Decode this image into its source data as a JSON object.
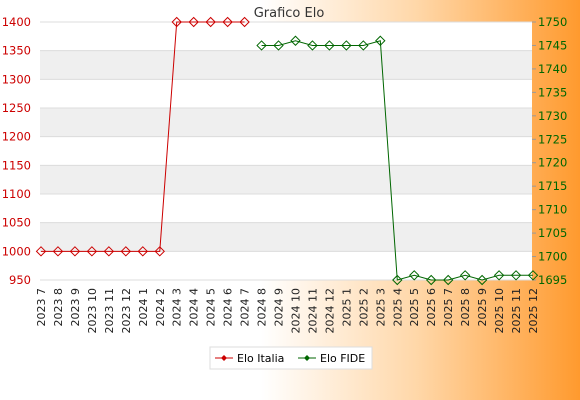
{
  "chart_data": {
    "type": "line",
    "title": "Grafico Elo",
    "categories": [
      "2023 7",
      "2023 8",
      "2023 9",
      "2023 10",
      "2023 11",
      "2023 12",
      "2024 1",
      "2024 2",
      "2024 3",
      "2024 4",
      "2024 5",
      "2024 6",
      "2024 7",
      "2024 8",
      "2024 9",
      "2024 10",
      "2024 11",
      "2024 12",
      "2025 1",
      "2025 2",
      "2025 3",
      "2025 4",
      "2025 5",
      "2025 6",
      "2025 7",
      "2025 8",
      "2025 9",
      "2025 10",
      "2025 11",
      "2025 12"
    ],
    "series": [
      {
        "name": "Elo Italia",
        "axis": "left",
        "color": "#cc0000",
        "values": [
          1000,
          1000,
          1000,
          1000,
          1000,
          1000,
          1000,
          1000,
          1400,
          1400,
          1400,
          1400,
          1400,
          null,
          null,
          null,
          null,
          null,
          null,
          null,
          null,
          null,
          null,
          null,
          null,
          null,
          null,
          null,
          null,
          null
        ]
      },
      {
        "name": "Elo FIDE",
        "axis": "right",
        "color": "#006600",
        "values": [
          null,
          null,
          null,
          null,
          null,
          null,
          null,
          null,
          null,
          null,
          null,
          null,
          null,
          1745,
          1745,
          1746,
          1745,
          1745,
          1745,
          1745,
          1746,
          1695,
          1696,
          1695,
          1695,
          1696,
          1695,
          1696,
          1696,
          1696
        ]
      }
    ],
    "y_left": {
      "min": 950,
      "max": 1400,
      "ticks": [
        950,
        1000,
        1050,
        1100,
        1150,
        1200,
        1250,
        1300,
        1350,
        1400
      ],
      "color": "#cc0000"
    },
    "y_right": {
      "min": 1695,
      "max": 1750,
      "ticks": [
        1695,
        1700,
        1705,
        1710,
        1715,
        1720,
        1725,
        1730,
        1735,
        1740,
        1745,
        1750
      ],
      "color": "#006600"
    },
    "grid": true,
    "legend_position": "bottom"
  }
}
